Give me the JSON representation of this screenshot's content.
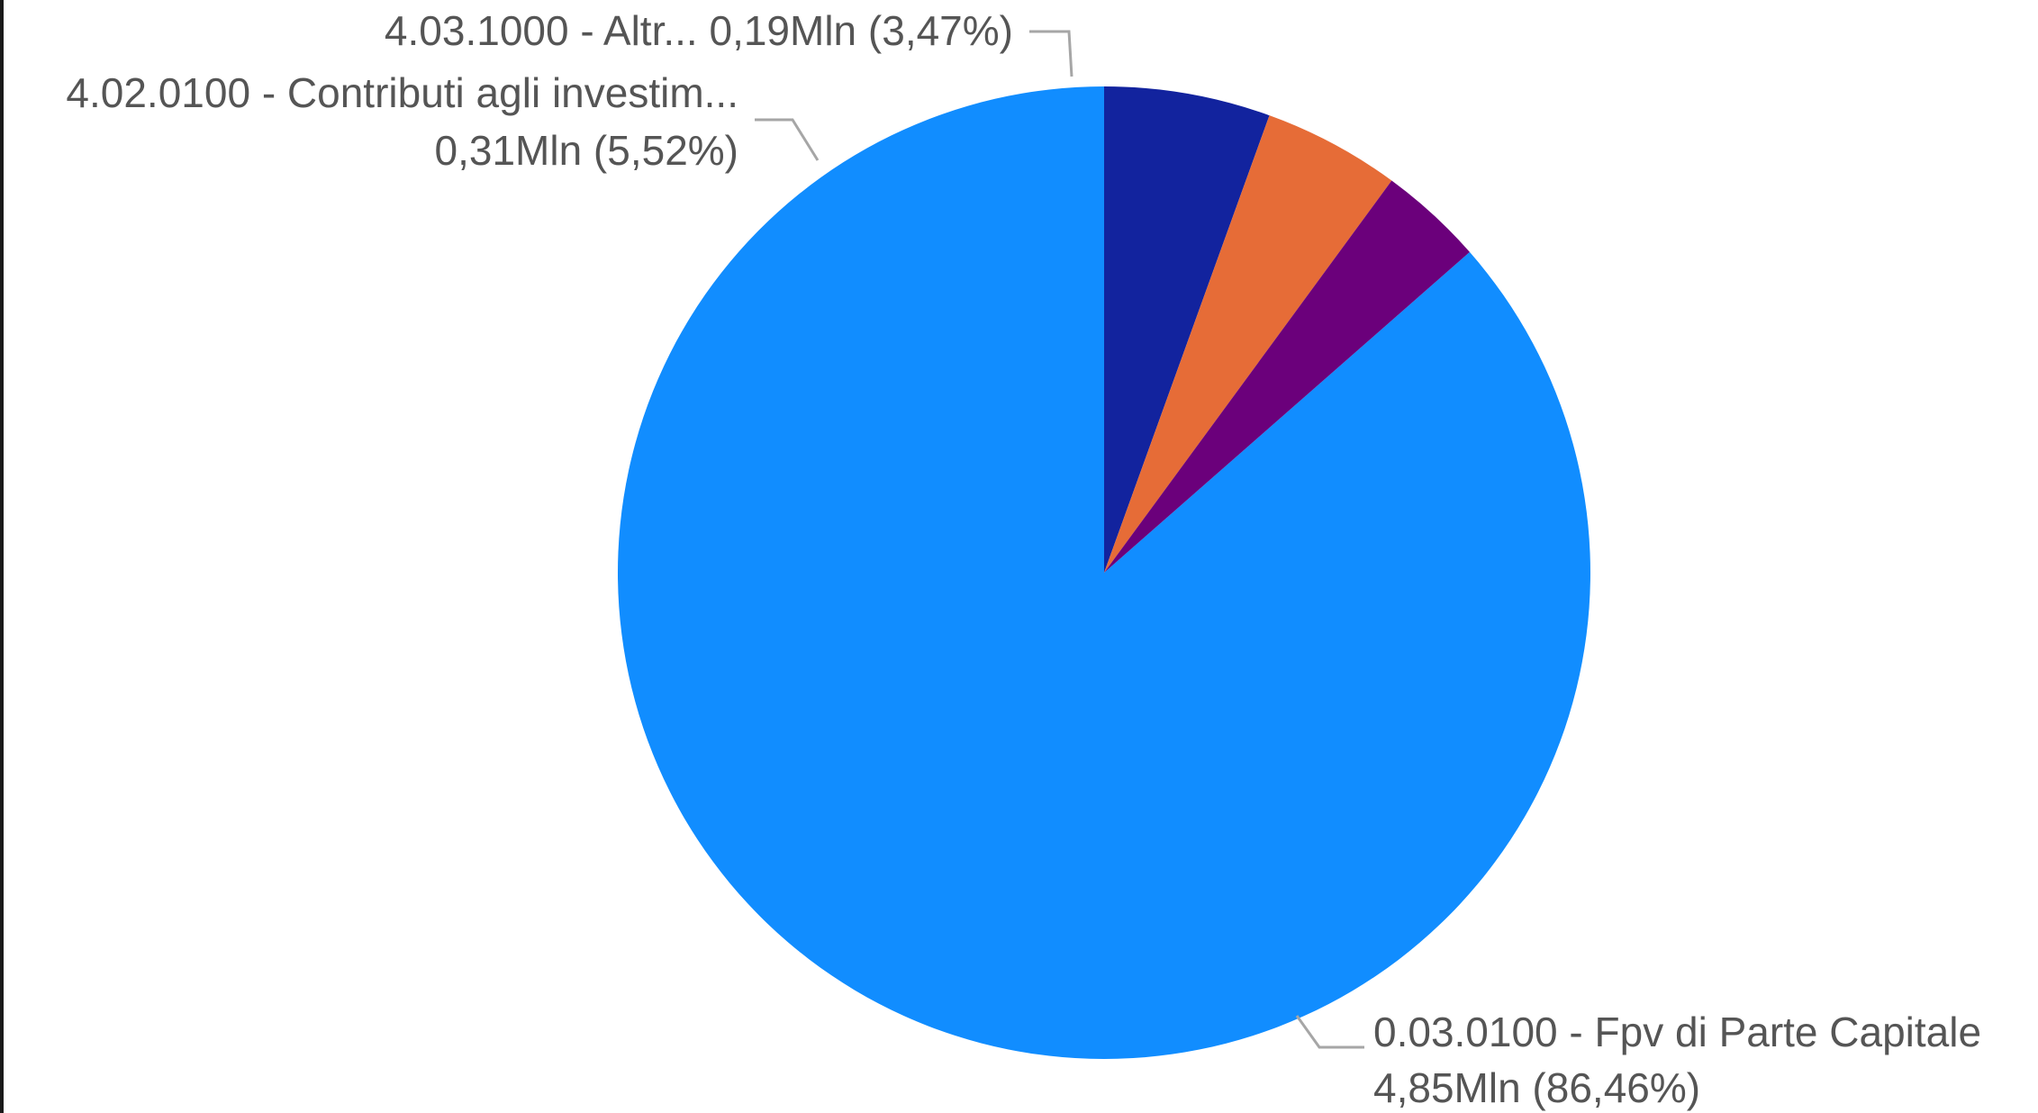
{
  "chart_data": {
    "type": "pie",
    "title": "",
    "start_angle_deg": 0,
    "direction": "clockwise",
    "legend": "none",
    "slices": [
      {
        "label": "0.03.0100 - Fpv di Parte Capitale",
        "value": 4.85,
        "value_label": "4,85Mln",
        "percent": 86.46,
        "percent_label": "(86,46%)",
        "color": "#118dff"
      },
      {
        "label": "4.02.0100 - Contributi agli investim...",
        "value": 0.31,
        "value_label": "0,31Mln",
        "percent": 5.52,
        "percent_label": "(5,52%)",
        "color": "#12239e"
      },
      {
        "label": "",
        "value": 0.25,
        "value_label": "",
        "percent": 4.55,
        "percent_label": "",
        "color": "#e66c37"
      },
      {
        "label": "4.03.1000 - Altr...",
        "value": 0.19,
        "value_label": "0,19Mln",
        "percent": 3.47,
        "percent_label": "(3,47%)",
        "color": "#6b007b"
      }
    ],
    "data_labels": [
      {
        "slice": 0,
        "line1": "0.03.0100 - Fpv di Parte Capitale",
        "line2": "4,85Mln (86,46%)"
      },
      {
        "slice": 1,
        "line1": "4.02.0100 - Contributi agli investim...",
        "line2": "0,31Mln (5,52%)"
      },
      {
        "slice": 3,
        "line1": "4.03.1000 - Altr... 0,19Mln (3,47%)",
        "line2": ""
      }
    ]
  }
}
